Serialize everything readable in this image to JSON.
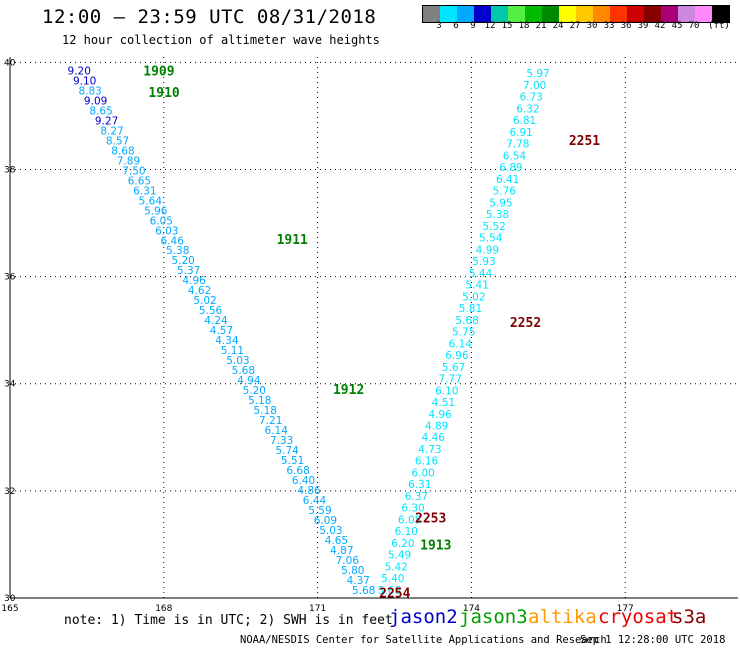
{
  "header": {
    "title": "12:00 — 23:59 UTC 08/31/2018",
    "subtitle": "12 hour collection of altimeter wave heights"
  },
  "colorbar": {
    "colors": [
      "#808080",
      "#00e5ff",
      "#00aaff",
      "#0000cc",
      "#00c8a8",
      "#55ee44",
      "#00bb00",
      "#008800",
      "#ffff00",
      "#ffc800",
      "#ff8800",
      "#ff3300",
      "#cc0000",
      "#880000",
      "#aa0077",
      "#cc88dd",
      "#ff88ff",
      "#000000"
    ],
    "labels": [
      "3",
      "6",
      "9",
      "12",
      "15",
      "18",
      "21",
      "24",
      "27",
      "30",
      "33",
      "36",
      "39",
      "42",
      "45",
      "70",
      "(ft)"
    ]
  },
  "map_data": {
    "lon_ticks": [
      "165",
      "168",
      "171",
      "174",
      "177"
    ],
    "lat_ticks": [
      "40",
      "38",
      "36",
      "34",
      "32",
      "30"
    ],
    "lon_range": [
      165,
      179.2
    ],
    "lat_range": [
      30,
      40.1
    ],
    "grid_lines": "dotted",
    "passes": [
      {
        "label": "1909",
        "lat": 39.85,
        "lon": 167.6,
        "color": "#008000"
      },
      {
        "label": "1910",
        "lat": 39.45,
        "lon": 167.7,
        "color": "#008000"
      },
      {
        "label": "1911",
        "lat": 36.7,
        "lon": 170.2,
        "color": "#008000"
      },
      {
        "label": "1912",
        "lat": 33.9,
        "lon": 171.3,
        "color": "#008000"
      },
      {
        "label": "1913",
        "lat": 31.0,
        "lon": 173.0,
        "color": "#008000"
      },
      {
        "label": "2251",
        "lat": 38.55,
        "lon": 175.9,
        "color": "#800000"
      },
      {
        "label": "2252",
        "lat": 35.15,
        "lon": 174.75,
        "color": "#800000"
      },
      {
        "label": "2253",
        "lat": 31.5,
        "lon": 172.9,
        "color": "#800000"
      },
      {
        "label": "2254",
        "lat": 30.1,
        "lon": 172.2,
        "color": "#800000"
      }
    ],
    "track_a": {
      "start": {
        "lat": 39.85,
        "lon": 166.35
      },
      "end": {
        "lat": 30.15,
        "lon": 171.9
      },
      "values": [
        "9.20",
        "9.10",
        "8.83",
        "9.09",
        "8.65",
        "9.27",
        "8.27",
        "8.57",
        "8.68",
        "7.89",
        "7.50",
        "6.65",
        "6.31",
        "5.64",
        "5.96",
        "6.05",
        "6.03",
        "6.46",
        "5.38",
        "5.20",
        "5.37",
        "4.96",
        "4.62",
        "5.02",
        "5.56",
        "4.24",
        "4.57",
        "4.34",
        "5.11",
        "5.03",
        "5.68",
        "4.94",
        "5.20",
        "5.18",
        "5.18",
        "7.21",
        "6.14",
        "7.33",
        "5.74",
        "5.51",
        "6.68",
        "6.40",
        "4.86",
        "6.44",
        "5.59",
        "6.09",
        "5.03",
        "4.65",
        "4.87",
        "7.06",
        "5.80",
        "4.37",
        "5.68"
      ],
      "colors": [
        "#0000cc",
        "#0000cc",
        "#00aaff",
        "#0000cc",
        "#00aaff",
        "#0000cc",
        "#00aaff",
        "#00aaff",
        "#00aaff",
        "#00aaff",
        "#00aaff",
        "#00aaff",
        "#00aaff",
        "#00aaff",
        "#00aaff",
        "#00aaff",
        "#00aaff",
        "#00aaff",
        "#00aaff",
        "#00aaff",
        "#00aaff",
        "#00aaff",
        "#00aaff",
        "#00aaff",
        "#00aaff",
        "#00aaff",
        "#00aaff",
        "#00aaff",
        "#00aaff",
        "#00aaff",
        "#00aaff",
        "#00aaff",
        "#00aaff",
        "#00aaff",
        "#00aaff",
        "#00aaff",
        "#00aaff",
        "#00aaff",
        "#00aaff",
        "#00aaff",
        "#00aaff",
        "#00aaff",
        "#00aaff",
        "#00aaff",
        "#00aaff",
        "#00aaff",
        "#00aaff",
        "#00aaff",
        "#00aaff",
        "#00aaff",
        "#00aaff",
        "#00aaff",
        "#00aaff"
      ]
    },
    "track_b": {
      "start": {
        "lat": 39.8,
        "lon": 175.3
      },
      "end": {
        "lat": 30.15,
        "lon": 172.4
      },
      "values": [
        "5.97",
        "7.00",
        "6.73",
        "6.32",
        "6.81",
        "6.91",
        "7.78",
        "6.54",
        "6.89",
        "6.41",
        "5.76",
        "5.95",
        "5.38",
        "5.52",
        "5.54",
        "4.99",
        "5.93",
        "5.44",
        "5.41",
        "5.02",
        "5.81",
        "5.68",
        "5.75",
        "6.14",
        "6.96",
        "5.67",
        "7.77",
        "6.10",
        "4.51",
        "4.96",
        "4.89",
        "4.46",
        "4.73",
        "6.16",
        "6.00",
        "6.31",
        "6.37",
        "6.30",
        "6.05",
        "6.10",
        "6.20",
        "5.49",
        "5.42",
        "5.40",
        "5.66"
      ],
      "colors": [
        "#00e5ff",
        "#00e5ff",
        "#00e5ff",
        "#00e5ff",
        "#00e5ff",
        "#00e5ff",
        "#00e5ff",
        "#00e5ff",
        "#00e5ff",
        "#00e5ff",
        "#00e5ff",
        "#00e5ff",
        "#00e5ff",
        "#00e5ff",
        "#00e5ff",
        "#00e5ff",
        "#00e5ff",
        "#00e5ff",
        "#00e5ff",
        "#00e5ff",
        "#00e5ff",
        "#00e5ff",
        "#00e5ff",
        "#00e5ff",
        "#00e5ff",
        "#00e5ff",
        "#00e5ff",
        "#00e5ff",
        "#00e5ff",
        "#00e5ff",
        "#00e5ff",
        "#00e5ff",
        "#00e5ff",
        "#00e5ff",
        "#00e5ff",
        "#00e5ff",
        "#00e5ff",
        "#00e5ff",
        "#00e5ff",
        "#00e5ff",
        "#00e5ff",
        "#00e5ff",
        "#00e5ff",
        "#00e5ff",
        "#00e5ff"
      ]
    }
  },
  "legend": {
    "note": "note: 1) Time is in UTC; 2) SWH is in feet",
    "satellites": [
      {
        "name": "jason2",
        "color": "#0000cc"
      },
      {
        "name": "jason3",
        "color": "#00a000"
      },
      {
        "name": "altika",
        "color": "#ff9900"
      },
      {
        "name": "cryosat",
        "color": "#ee0000"
      },
      {
        "name": "s3a",
        "color": "#880000"
      }
    ]
  },
  "footer": {
    "credit": "NOAA/NESDIS Center for Satellite Applications and Research",
    "timestamp": "Sep  1 12:28:00 UTC 2018"
  }
}
